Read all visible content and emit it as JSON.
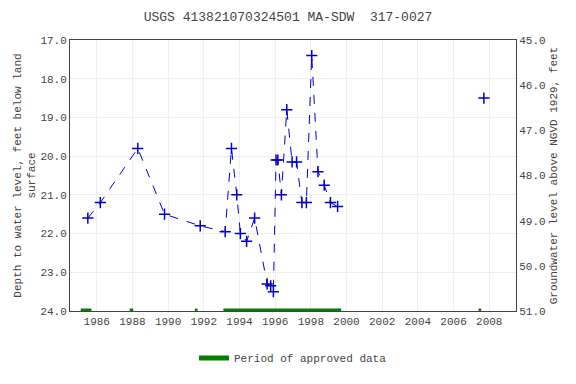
{
  "chart_data": {
    "type": "line",
    "title": "USGS 413821070324501 MA-SDW  317-0027",
    "y_label": "Depth to water level, feet below land\nsurface",
    "y2_label": "Groundwater level above NGVD 1929, feet",
    "xlim": [
      1984.5,
      2009.5
    ],
    "xticks": [
      1986,
      1988,
      1990,
      1992,
      1994,
      1996,
      1998,
      2000,
      2002,
      2004,
      2006,
      2008
    ],
    "ylim": [
      24.0,
      17.0
    ],
    "yticks": [
      {
        "value": 17.0,
        "label": "17.0"
      },
      {
        "value": 18.0,
        "label": "18.0"
      },
      {
        "value": 19.0,
        "label": "19.0"
      },
      {
        "value": 20.0,
        "label": "20.0"
      },
      {
        "value": 21.0,
        "label": "21.0"
      },
      {
        "value": 22.0,
        "label": "22.0"
      },
      {
        "value": 23.0,
        "label": "23.0"
      },
      {
        "value": 24.0,
        "label": "24.0"
      }
    ],
    "y2lim": [
      51.0,
      45.0
    ],
    "y2ticks": [
      {
        "value": 51.0,
        "label": "51.0"
      },
      {
        "value": 50.0,
        "label": "50.0"
      },
      {
        "value": 49.0,
        "label": "49.0"
      },
      {
        "value": 48.0,
        "label": "48.0"
      },
      {
        "value": 47.0,
        "label": "47.0"
      },
      {
        "value": 46.0,
        "label": "46.0"
      },
      {
        "value": 45.0,
        "label": "45.0"
      }
    ],
    "grid": true,
    "legend": "bottom",
    "series": [
      {
        "color": "#0000CC",
        "marker": "plus",
        "line_style": "dashed",
        "x": [
          1985.5,
          1986.2,
          1988.3,
          1989.8,
          1991.8,
          1993.2,
          1993.55,
          1993.85,
          1994.05,
          1994.4,
          1994.85,
          1995.55,
          1995.75,
          1995.9,
          1996.05,
          1996.15,
          1996.35,
          1996.65,
          1996.95,
          1997.2,
          1997.5,
          1997.75,
          1998.05,
          1998.4,
          1998.75,
          1999.1,
          1999.5
        ],
        "values": [
          21.6,
          21.2,
          19.8,
          21.5,
          21.8,
          21.95,
          19.8,
          21.0,
          22.0,
          22.2,
          21.6,
          23.3,
          23.35,
          23.5,
          20.1,
          20.1,
          21.0,
          18.8,
          20.15,
          20.15,
          21.2,
          21.2,
          17.4,
          20.4,
          20.75,
          21.2,
          21.3
        ]
      },
      {
        "color": "#0000CC",
        "marker": "plus",
        "line_style": "none",
        "x": [
          2007.7
        ],
        "values": [
          18.5
        ]
      },
      {
        "name": "Period of approved data",
        "type": "period",
        "color": "#008000",
        "periods": [
          [
            1985.1,
            1985.7
          ],
          [
            1987.85,
            1988.05
          ],
          [
            1991.5,
            1991.65
          ],
          [
            1993.1,
            1999.7
          ],
          [
            2007.4,
            2007.55
          ]
        ]
      }
    ]
  }
}
